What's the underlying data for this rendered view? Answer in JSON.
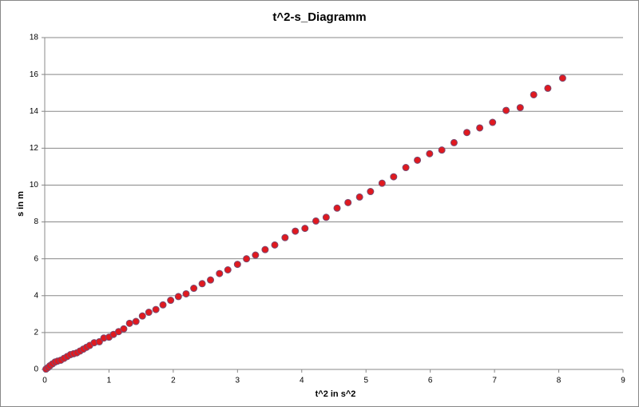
{
  "chart_data": {
    "type": "scatter",
    "title": "t^2-s_Diagramm",
    "x_label": "t^2  in s^2",
    "y_label": "s in m",
    "series": [
      {
        "color": "#e0191f",
        "x": [
          0.02,
          0.05,
          0.08,
          0.12,
          0.16,
          0.2,
          0.25,
          0.3,
          0.35,
          0.4,
          0.45,
          0.5,
          0.55,
          0.6,
          0.65,
          0.7,
          0.77,
          0.85,
          0.92,
          1.0,
          1.07,
          1.15,
          1.23,
          1.32,
          1.42,
          1.52,
          1.62,
          1.73,
          1.84,
          1.96,
          2.08,
          2.2,
          2.32,
          2.45,
          2.58,
          2.72,
          2.85,
          3.0,
          3.14,
          3.28,
          3.43,
          3.58,
          3.74,
          3.9,
          4.05,
          4.22,
          4.38,
          4.55,
          4.72,
          4.9,
          5.07,
          5.25,
          5.43,
          5.62,
          5.8,
          5.99,
          6.18,
          6.37,
          6.57,
          6.77,
          6.97,
          7.18,
          7.4,
          7.61,
          7.83,
          8.06
        ],
        "values": [
          0.02,
          0.1,
          0.2,
          0.3,
          0.4,
          0.45,
          0.5,
          0.6,
          0.7,
          0.8,
          0.85,
          0.9,
          1.0,
          1.1,
          1.2,
          1.3,
          1.45,
          1.5,
          1.7,
          1.75,
          1.9,
          2.05,
          2.2,
          2.5,
          2.6,
          2.9,
          3.1,
          3.25,
          3.5,
          3.75,
          3.95,
          4.1,
          4.4,
          4.65,
          4.85,
          5.2,
          5.4,
          5.7,
          6.0,
          6.2,
          6.5,
          6.75,
          7.15,
          7.5,
          7.65,
          8.05,
          8.25,
          8.75,
          9.05,
          9.35,
          9.65,
          10.1,
          10.45,
          10.95,
          11.35,
          11.7,
          11.9,
          12.3,
          12.85,
          13.1,
          13.4,
          14.05,
          14.2,
          14.9,
          15.25,
          15.8
        ]
      }
    ],
    "xlim": [
      0,
      9
    ],
    "xticks": [
      0,
      1,
      2,
      3,
      4,
      5,
      6,
      7,
      8,
      9
    ],
    "ylim": [
      0,
      18
    ],
    "yticks": [
      0,
      2,
      4,
      6,
      8,
      10,
      12,
      14,
      16,
      18
    ],
    "grid": true
  }
}
